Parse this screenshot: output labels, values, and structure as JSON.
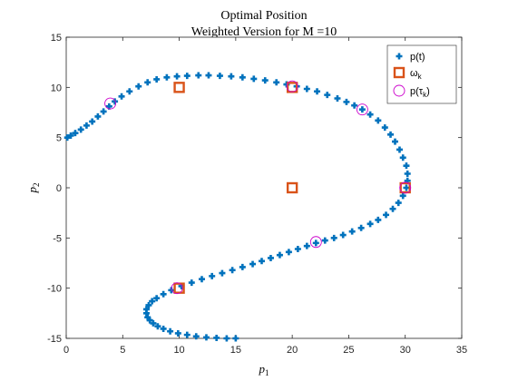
{
  "chart_data": {
    "type": "scatter",
    "title": "Optimal Position",
    "subtitle": "Weighted Version for M =10",
    "xlabel": "p",
    "xlabel_sub": "1",
    "ylabel": "p",
    "ylabel_sub": "2",
    "xlim": [
      0,
      35
    ],
    "ylim": [
      -15,
      15
    ],
    "xticks": [
      0,
      5,
      10,
      15,
      20,
      25,
      30,
      35
    ],
    "yticks": [
      -15,
      -10,
      -5,
      0,
      5,
      10,
      15
    ],
    "grid": false,
    "legend_position": "top-right",
    "colors": {
      "trajectory": "#0072BD",
      "waypoint": "#D95319",
      "tau": "#CC00CC",
      "axis": "#262626"
    },
    "series": [
      {
        "name": "p(t)",
        "marker": "plus",
        "points": [
          [
            0.1,
            5.0
          ],
          [
            0.4,
            5.2
          ],
          [
            0.8,
            5.45
          ],
          [
            1.3,
            5.8
          ],
          [
            1.8,
            6.2
          ],
          [
            2.3,
            6.6
          ],
          [
            2.8,
            7.1
          ],
          [
            3.3,
            7.6
          ],
          [
            3.8,
            8.1
          ],
          [
            4.3,
            8.6
          ],
          [
            4.9,
            9.1
          ],
          [
            5.6,
            9.6
          ],
          [
            6.4,
            10.1
          ],
          [
            7.2,
            10.5
          ],
          [
            8.0,
            10.8
          ],
          [
            8.9,
            11.0
          ],
          [
            9.8,
            11.1
          ],
          [
            10.7,
            11.15
          ],
          [
            11.7,
            11.2
          ],
          [
            12.6,
            11.2
          ],
          [
            13.6,
            11.15
          ],
          [
            14.6,
            11.1
          ],
          [
            15.6,
            11.0
          ],
          [
            16.6,
            10.85
          ],
          [
            17.6,
            10.7
          ],
          [
            18.6,
            10.5
          ],
          [
            19.5,
            10.3
          ],
          [
            20.4,
            10.1
          ],
          [
            21.3,
            9.85
          ],
          [
            22.2,
            9.6
          ],
          [
            23.1,
            9.25
          ],
          [
            24.0,
            8.9
          ],
          [
            24.8,
            8.55
          ],
          [
            25.5,
            8.2
          ],
          [
            26.2,
            7.8
          ],
          [
            26.9,
            7.3
          ],
          [
            27.6,
            6.7
          ],
          [
            28.2,
            6.0
          ],
          [
            28.7,
            5.3
          ],
          [
            29.1,
            4.6
          ],
          [
            29.5,
            3.8
          ],
          [
            29.8,
            3.0
          ],
          [
            30.1,
            2.2
          ],
          [
            30.2,
            1.4
          ],
          [
            30.2,
            0.7
          ],
          [
            30.1,
            0.0
          ],
          [
            29.8,
            -0.8
          ],
          [
            29.4,
            -1.5
          ],
          [
            28.9,
            -2.1
          ],
          [
            28.3,
            -2.7
          ],
          [
            27.6,
            -3.2
          ],
          [
            26.9,
            -3.6
          ],
          [
            26.1,
            -4.0
          ],
          [
            25.3,
            -4.35
          ],
          [
            24.5,
            -4.7
          ],
          [
            23.7,
            -5.0
          ],
          [
            22.9,
            -5.25
          ],
          [
            22.1,
            -5.5
          ],
          [
            21.3,
            -5.8
          ],
          [
            20.5,
            -6.1
          ],
          [
            19.7,
            -6.4
          ],
          [
            18.9,
            -6.7
          ],
          [
            18.1,
            -7.0
          ],
          [
            17.3,
            -7.3
          ],
          [
            16.5,
            -7.6
          ],
          [
            15.6,
            -7.9
          ],
          [
            14.7,
            -8.2
          ],
          [
            13.8,
            -8.5
          ],
          [
            12.9,
            -8.8
          ],
          [
            12.0,
            -9.1
          ],
          [
            11.1,
            -9.45
          ],
          [
            10.2,
            -9.8
          ],
          [
            9.3,
            -10.2
          ],
          [
            8.6,
            -10.6
          ],
          [
            8.0,
            -11.0
          ],
          [
            7.6,
            -11.3
          ],
          [
            7.3,
            -11.7
          ],
          [
            7.1,
            -12.1
          ],
          [
            7.1,
            -12.5
          ],
          [
            7.2,
            -12.9
          ],
          [
            7.4,
            -13.2
          ],
          [
            7.7,
            -13.5
          ],
          [
            8.1,
            -13.8
          ],
          [
            8.6,
            -14.05
          ],
          [
            9.2,
            -14.3
          ],
          [
            9.9,
            -14.5
          ],
          [
            10.7,
            -14.65
          ],
          [
            11.5,
            -14.8
          ],
          [
            12.4,
            -14.9
          ],
          [
            13.3,
            -14.95
          ],
          [
            14.2,
            -15.0
          ],
          [
            15.0,
            -15.0
          ]
        ]
      },
      {
        "name": "ω",
        "name_sub": "k",
        "marker": "square",
        "points": [
          [
            10,
            10
          ],
          [
            20,
            10
          ],
          [
            30,
            0
          ],
          [
            20,
            0
          ],
          [
            10,
            -10
          ]
        ]
      },
      {
        "name": "p(τ",
        "name_sub": "k",
        "name_end": ")",
        "marker": "circle",
        "points": [
          [
            3.9,
            8.4
          ],
          [
            20.0,
            10.1
          ],
          [
            26.2,
            7.8
          ],
          [
            30.0,
            0.0
          ],
          [
            22.1,
            -5.4
          ],
          [
            9.8,
            -10.0
          ]
        ]
      }
    ]
  }
}
